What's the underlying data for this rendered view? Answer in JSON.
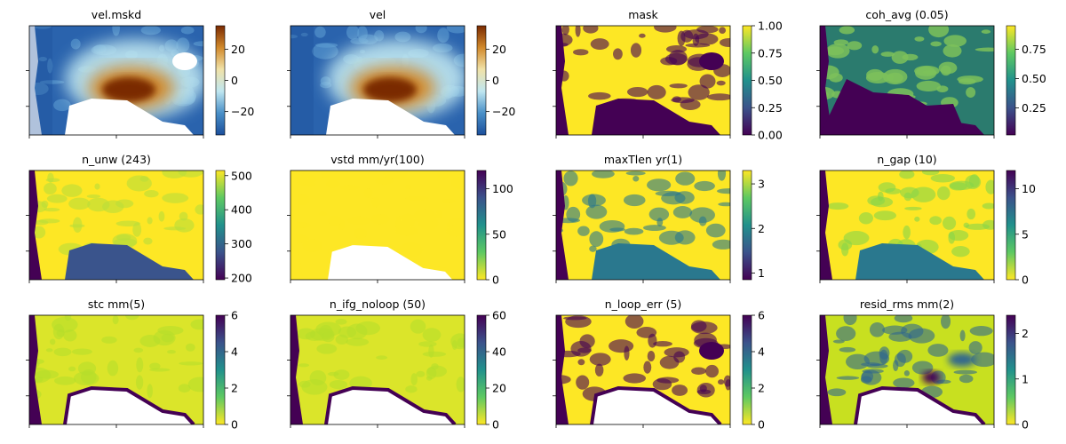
{
  "figure": {
    "panels": [
      {
        "title": "vel.mskd",
        "cmap": "RdYlBu_r-like",
        "range": [
          -35,
          35
        ],
        "ticks": [
          "20",
          "0",
          "−20"
        ],
        "tick_values": [
          20,
          0,
          -20
        ]
      },
      {
        "title": "vel",
        "cmap": "RdYlBu_r-like",
        "range": [
          -35,
          35
        ],
        "ticks": [
          "20",
          "0",
          "−20"
        ],
        "tick_values": [
          20,
          0,
          -20
        ]
      },
      {
        "title": "mask",
        "cmap": "viridis",
        "range": [
          0,
          1
        ],
        "ticks": [
          "1.00",
          "0.75",
          "0.50",
          "0.25",
          "0.00"
        ],
        "tick_values": [
          1,
          0.75,
          0.5,
          0.25,
          0
        ]
      },
      {
        "title": "coh_avg (0.05)",
        "cmap": "viridis",
        "range": [
          0.02,
          0.95
        ],
        "ticks": [
          "0.75",
          "0.50",
          "0.25"
        ],
        "tick_values": [
          0.75,
          0.5,
          0.25
        ]
      },
      {
        "title": "n_unw (243)",
        "cmap": "viridis",
        "range": [
          195,
          515
        ],
        "ticks": [
          "500",
          "400",
          "300",
          "200"
        ],
        "tick_values": [
          500,
          400,
          300,
          200
        ]
      },
      {
        "title": "vstd mm/yr(100)",
        "cmap": "viridis_r",
        "range": [
          0,
          120
        ],
        "ticks": [
          "100",
          "50",
          "0"
        ],
        "tick_values": [
          100,
          50,
          0
        ]
      },
      {
        "title": "maxTlen yr(1)",
        "cmap": "viridis",
        "range": [
          0.85,
          3.3
        ],
        "ticks": [
          "3",
          "2",
          "1"
        ],
        "tick_values": [
          3,
          2,
          1
        ]
      },
      {
        "title": "n_gap (10)",
        "cmap": "viridis_r",
        "range": [
          0,
          12
        ],
        "ticks": [
          "10",
          "5",
          "0"
        ],
        "tick_values": [
          10,
          5,
          0
        ]
      },
      {
        "title": "stc mm(5)",
        "cmap": "viridis_r",
        "range": [
          0,
          6
        ],
        "ticks": [
          "6",
          "4",
          "2",
          "0"
        ],
        "tick_values": [
          6,
          4,
          2,
          0
        ]
      },
      {
        "title": "n_ifg_noloop (50)",
        "cmap": "viridis_r",
        "range": [
          0,
          60
        ],
        "ticks": [
          "60",
          "40",
          "20",
          "0"
        ],
        "tick_values": [
          60,
          40,
          20,
          0
        ]
      },
      {
        "title": "n_loop_err (5)",
        "cmap": "viridis_r",
        "range": [
          0,
          6
        ],
        "ticks": [
          "6",
          "4",
          "2",
          "0"
        ],
        "tick_values": [
          6,
          4,
          2,
          0
        ]
      },
      {
        "title": "resid_rms mm(2)",
        "cmap": "viridis_r",
        "range": [
          0,
          2.4
        ],
        "ticks": [
          "2",
          "1",
          "0"
        ],
        "tick_values": [
          2,
          1,
          0
        ]
      }
    ]
  },
  "chart_data": {
    "type": "heatmap",
    "layout": "3 rows x 4 columns grid of raster maps with colorbars",
    "grid": false,
    "panels": [
      {
        "title": "vel.mskd",
        "colorbar_range": [
          -35,
          35
        ],
        "colorbar_ticks": [
          20,
          0,
          -20
        ]
      },
      {
        "title": "vel",
        "colorbar_range": [
          -35,
          35
        ],
        "colorbar_ticks": [
          20,
          0,
          -20
        ]
      },
      {
        "title": "mask",
        "colorbar_range": [
          0,
          1
        ],
        "colorbar_ticks": [
          0.0,
          0.25,
          0.5,
          0.75,
          1.0
        ]
      },
      {
        "title": "coh_avg (0.05)",
        "colorbar_range": [
          0.02,
          0.95
        ],
        "colorbar_ticks": [
          0.25,
          0.5,
          0.75
        ]
      },
      {
        "title": "n_unw (243)",
        "colorbar_range": [
          195,
          515
        ],
        "colorbar_ticks": [
          200,
          300,
          400,
          500
        ]
      },
      {
        "title": "vstd mm/yr(100)",
        "colorbar_range": [
          0,
          120
        ],
        "colorbar_ticks": [
          0,
          50,
          100
        ]
      },
      {
        "title": "maxTlen yr(1)",
        "colorbar_range": [
          0.85,
          3.3
        ],
        "colorbar_ticks": [
          1,
          2,
          3
        ]
      },
      {
        "title": "n_gap (10)",
        "colorbar_range": [
          0,
          12
        ],
        "colorbar_ticks": [
          0,
          5,
          10
        ]
      },
      {
        "title": "stc mm(5)",
        "colorbar_range": [
          0,
          6
        ],
        "colorbar_ticks": [
          0,
          2,
          4,
          6
        ]
      },
      {
        "title": "n_ifg_noloop (50)",
        "colorbar_range": [
          0,
          60
        ],
        "colorbar_ticks": [
          0,
          20,
          40,
          60
        ]
      },
      {
        "title": "n_loop_err (5)",
        "colorbar_range": [
          0,
          6
        ],
        "colorbar_ticks": [
          0,
          2,
          4,
          6
        ]
      },
      {
        "title": "resid_rms mm(2)",
        "colorbar_range": [
          0,
          2.4
        ],
        "colorbar_ticks": [
          0,
          1,
          2
        ]
      }
    ]
  },
  "colors": {
    "viridis": [
      "#440154",
      "#3b528b",
      "#21918c",
      "#5ec962",
      "#fde725"
    ],
    "viridis_r": [
      "#fde725",
      "#5ec962",
      "#21918c",
      "#3b528b",
      "#440154"
    ],
    "vel": [
      "#1c4f9c",
      "#4a90c8",
      "#bfe6f0",
      "#f0e2a8",
      "#d28a2c",
      "#7a2a02"
    ]
  }
}
